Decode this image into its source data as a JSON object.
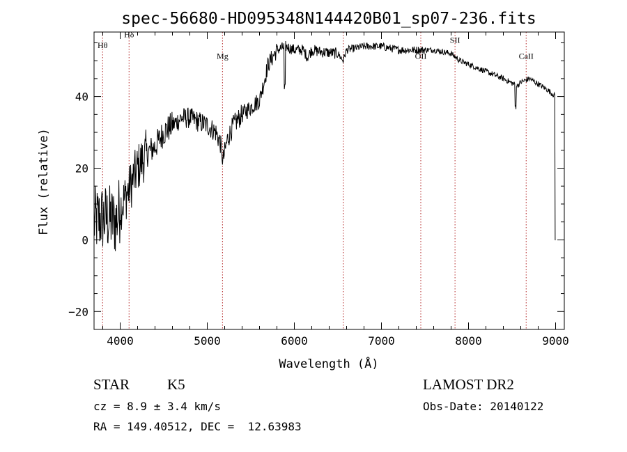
{
  "chart_data": {
    "type": "line",
    "title": "spec-56680-HD095348N144420B01_sp07-236.fits",
    "xlabel": "Wavelength (Å)",
    "ylabel": "Flux (relative)",
    "xlim": [
      3700,
      9100
    ],
    "ylim": [
      -25,
      58
    ],
    "x_ticks": [
      4000,
      5000,
      6000,
      7000,
      8000,
      9000
    ],
    "x_tick_labels": [
      "4000",
      "5000",
      "6000",
      "7000",
      "8000",
      "9000"
    ],
    "y_ticks": [
      -20,
      0,
      20,
      40
    ],
    "y_tick_labels": [
      "−20",
      "0",
      "20",
      "40"
    ],
    "grid": false,
    "line_color": "#000000",
    "marker_line_color": "#b22222",
    "spectral_lines": [
      {
        "label": "Hθ",
        "x": 3798,
        "label_y": 53.5
      },
      {
        "label": "Hδ",
        "x": 4102,
        "label_y": 56.5
      },
      {
        "label": "Mg",
        "x": 5175,
        "label_y": 50.5
      },
      {
        "label": "",
        "x": 6563,
        "label_y": 50
      },
      {
        "label": "OII",
        "x": 7452,
        "label_y": 50.5
      },
      {
        "label": "SII",
        "x": 7845,
        "label_y": 55
      },
      {
        "label": "CaII",
        "x": 8662,
        "label_y": 50.5
      }
    ],
    "spectrum_knots": [
      [
        3700,
        5
      ],
      [
        3780,
        6
      ],
      [
        3850,
        6
      ],
      [
        3950,
        5
      ],
      [
        4000,
        9
      ],
      [
        4100,
        14
      ],
      [
        4200,
        20
      ],
      [
        4300,
        24
      ],
      [
        4400,
        26
      ],
      [
        4500,
        30
      ],
      [
        4600,
        32
      ],
      [
        4700,
        34
      ],
      [
        4800,
        34
      ],
      [
        4900,
        33
      ],
      [
        5000,
        32
      ],
      [
        5100,
        30
      ],
      [
        5150,
        27
      ],
      [
        5180,
        22
      ],
      [
        5230,
        28
      ],
      [
        5300,
        32
      ],
      [
        5400,
        35
      ],
      [
        5500,
        37
      ],
      [
        5600,
        39
      ],
      [
        5650,
        44
      ],
      [
        5700,
        49
      ],
      [
        5800,
        53
      ],
      [
        5900,
        54
      ],
      [
        6000,
        53
      ],
      [
        6100,
        53
      ],
      [
        6150,
        51
      ],
      [
        6200,
        53
      ],
      [
        6300,
        52.5
      ],
      [
        6500,
        52
      ],
      [
        6560,
        50
      ],
      [
        6600,
        53
      ],
      [
        6800,
        54
      ],
      [
        7000,
        54
      ],
      [
        7200,
        53
      ],
      [
        7400,
        53
      ],
      [
        7600,
        53
      ],
      [
        7800,
        52
      ],
      [
        7900,
        50
      ],
      [
        8000,
        49
      ],
      [
        8200,
        47
      ],
      [
        8400,
        45
      ],
      [
        8560,
        43
      ],
      [
        8600,
        44
      ],
      [
        8700,
        45
      ],
      [
        8900,
        42
      ],
      [
        9000,
        40
      ]
    ]
  },
  "info": {
    "object_class": "STAR",
    "subclass": "K5",
    "cz": "cz = 8.9 ± 3.4 km/s",
    "coords": "RA = 149.40512, DEC =  12.63983",
    "survey": "LAMOST DR2",
    "obs_date": "Obs-Date: 20140122"
  }
}
